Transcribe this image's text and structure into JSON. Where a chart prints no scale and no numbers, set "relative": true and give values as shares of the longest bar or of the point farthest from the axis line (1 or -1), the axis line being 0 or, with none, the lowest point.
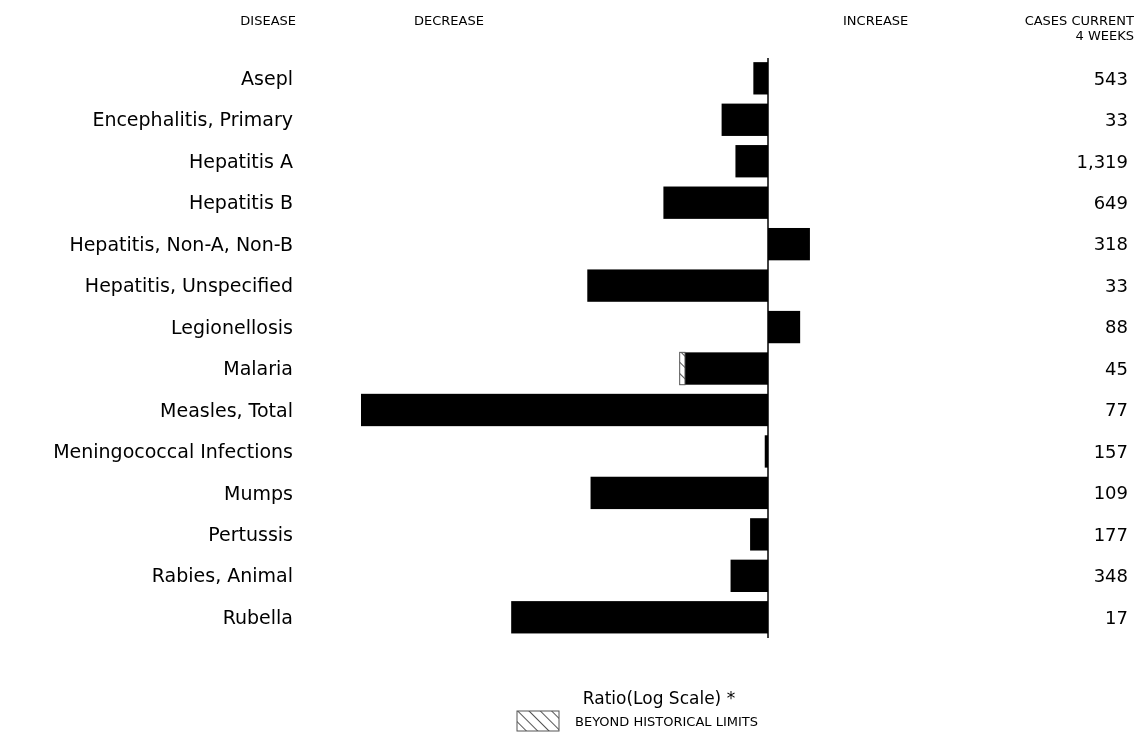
{
  "chart_data": {
    "type": "bar",
    "orientation": "horizontal",
    "relative": true,
    "stacked": true,
    "ylabel": "DISEASE",
    "xlabel": "Ratio(Log Scale) *",
    "annotations": [
      "DECREASE",
      "INCREASE",
      "CASES CURRENT 4 WEEKS",
      "543",
      "33",
      "1,319",
      "649",
      "318",
      "33",
      "88",
      "45",
      "77",
      "157",
      "109",
      "177",
      "348",
      "17"
    ],
    "categories": [
      "Asepl",
      "Encephalitis, Primary",
      "Hepatitis A",
      "Hepatitis B",
      "Hepatitis, Non-A, Non-B",
      "Hepatitis, Unspecified",
      "Legionellosis",
      "Malaria",
      "Measles, Total",
      "Meningococcal Infections",
      "Mumps",
      "Pertussis",
      "Rabies, Animal",
      "Rubella"
    ],
    "series": [
      {
        "color": "#000000",
        "values": [
          -0.036,
          -0.114,
          -0.08,
          -0.257,
          0.103,
          -0.444,
          0.079,
          -0.204,
          -1,
          -0.008,
          -0.436,
          -0.044,
          -0.092,
          -0.631
        ]
      },
      {
        "name": "BEYOND HISTORICAL LIMITS",
        "color": "#555555",
        "values": [
          null,
          null,
          null,
          null,
          null,
          null,
          null,
          -0.013,
          null,
          null,
          null,
          null,
          null,
          null
        ]
      }
    ],
    "legend": "bottom"
  }
}
